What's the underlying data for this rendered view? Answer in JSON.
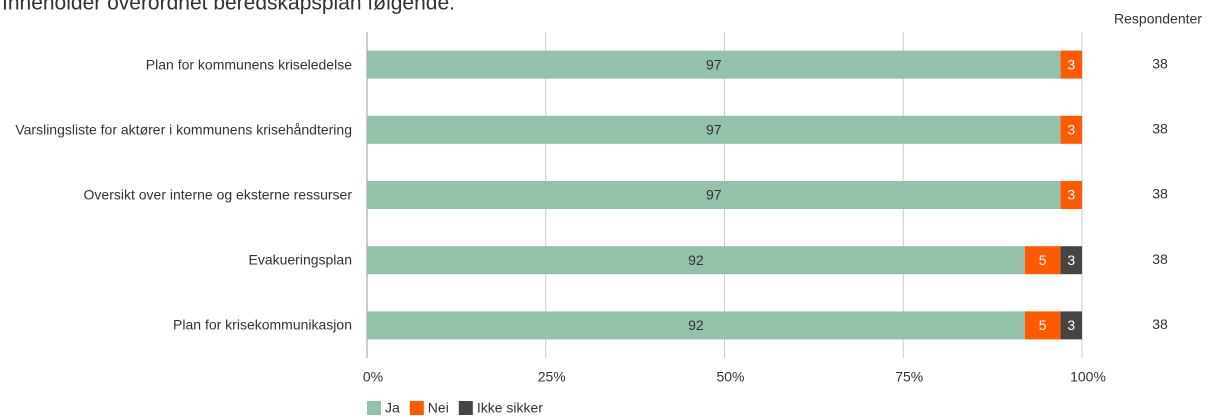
{
  "chart_data": {
    "type": "stacked-bar-horizontal",
    "title": "Inneholder overordnet beredskapsplan følgende:",
    "categories": [
      "Plan for kommunens kriseledelse",
      "Varslingsliste for aktører i kommunens krisehåndtering",
      "Oversikt over interne og eksterne ressurser",
      "Evakueringsplan",
      "Plan for krisekommunikasjon"
    ],
    "series": [
      {
        "name": "Ja",
        "color": "#93c1a9",
        "label_color": "#333333",
        "values": [
          97,
          97,
          97,
          92,
          92
        ]
      },
      {
        "name": "Nei",
        "color": "#ff5a00",
        "label_color": "#ffffff",
        "values": [
          3,
          3,
          3,
          5,
          5
        ]
      },
      {
        "name": "Ikke sikker",
        "color": "#454545",
        "label_color": "#ffffff",
        "values": [
          null,
          null,
          null,
          3,
          3
        ]
      }
    ],
    "xlim": [
      0,
      100
    ],
    "xticks": [
      {
        "value": 0,
        "label": "0%"
      },
      {
        "value": 25,
        "label": "25%"
      },
      {
        "value": 50,
        "label": "50%"
      },
      {
        "value": 75,
        "label": "75%"
      },
      {
        "value": 100,
        "label": "100%"
      }
    ],
    "grid": true,
    "legend": "bottom",
    "respondents": {
      "header": "Respondenter",
      "values": [
        38,
        38,
        38,
        38,
        38
      ]
    }
  }
}
